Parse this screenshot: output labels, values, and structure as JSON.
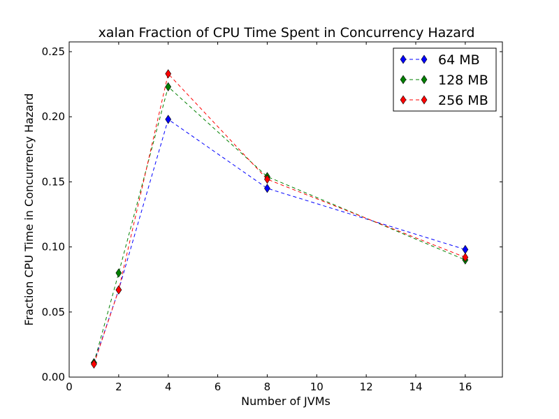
{
  "chart_data": {
    "type": "line",
    "title": "xalan Fraction of CPU Time Spent in Concurrency Hazard",
    "xlabel": "Number of JVMs",
    "ylabel": "Fraction CPU Time in Concurrency Hazard",
    "xlim": [
      0,
      17.5
    ],
    "ylim": [
      0,
      0.2575
    ],
    "xticks": [
      0,
      2,
      4,
      6,
      8,
      10,
      12,
      14,
      16
    ],
    "xtick_labels": [
      "0",
      "2",
      "4",
      "6",
      "8",
      "10",
      "12",
      "14",
      "16"
    ],
    "yticks": [
      0,
      0.05,
      0.1,
      0.15,
      0.2,
      0.25
    ],
    "ytick_labels": [
      "0.00",
      "0.05",
      "0.10",
      "0.15",
      "0.20",
      "0.25"
    ],
    "grid": false,
    "legend_position": "top-right",
    "line_style": "dashed",
    "marker": "thin-diamond",
    "x": [
      1,
      2,
      4,
      8,
      16
    ],
    "series": [
      {
        "name": "64 MB",
        "color": "#0000ff",
        "values": [
          0.011,
          0.067,
          0.198,
          0.145,
          0.098
        ]
      },
      {
        "name": "128 MB",
        "color": "#008000",
        "values": [
          0.011,
          0.08,
          0.223,
          0.154,
          0.09
        ]
      },
      {
        "name": "256 MB",
        "color": "#ff0000",
        "values": [
          0.01,
          0.067,
          0.233,
          0.152,
          0.092
        ]
      }
    ]
  }
}
